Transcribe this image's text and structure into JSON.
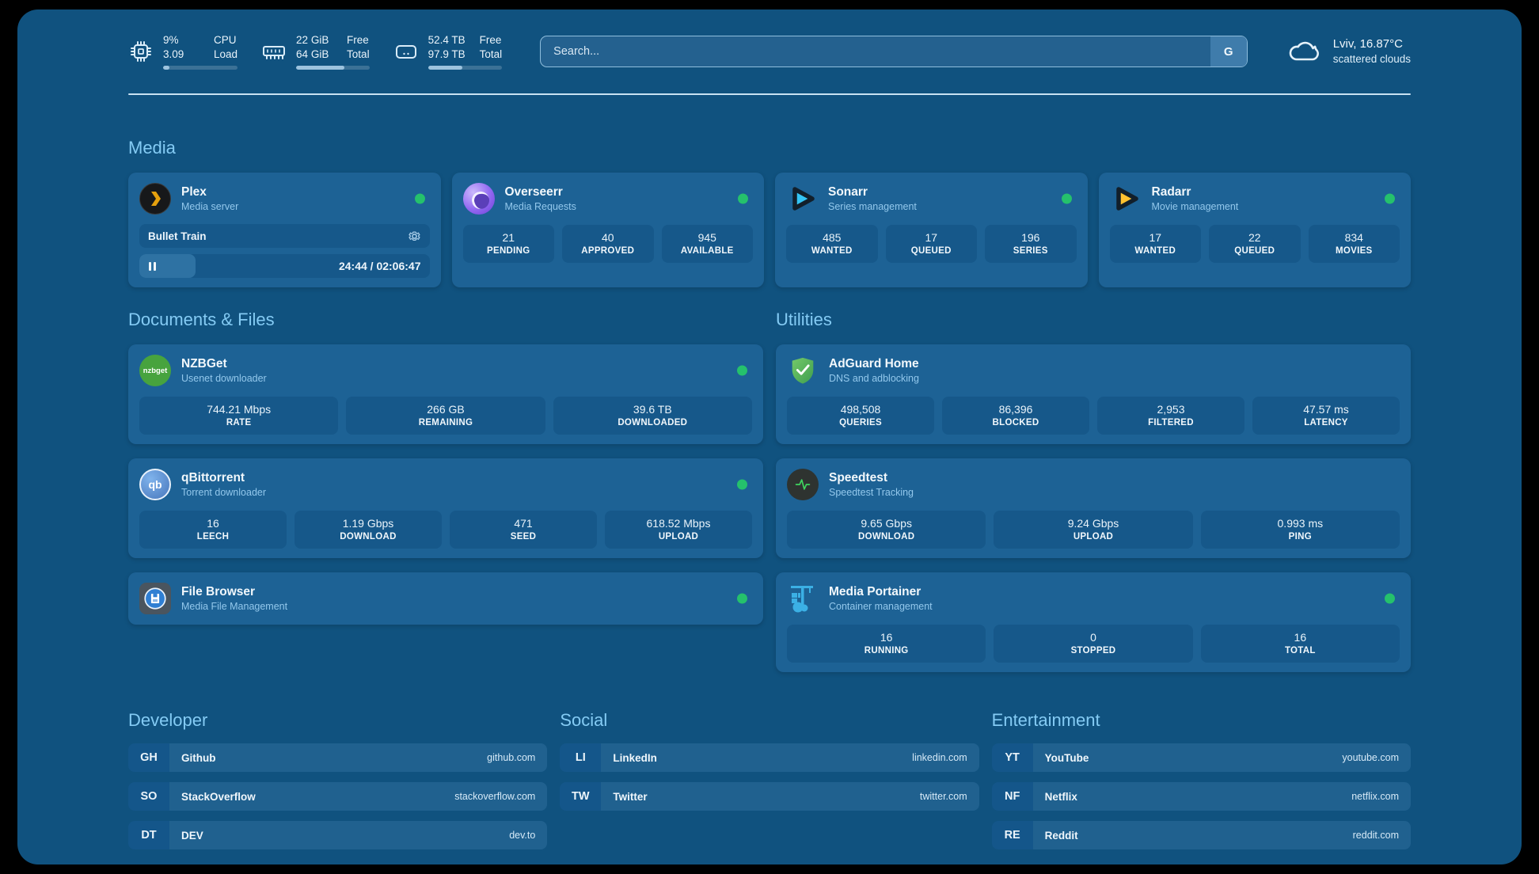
{
  "colors": {
    "status_online": "#25C16C",
    "accent": "#84CBF4",
    "page_background": "#10527F",
    "card_background": "#1D6295"
  },
  "header": {
    "stats": [
      {
        "name": "cpu",
        "values": [
          "9%",
          "3.09"
        ],
        "labels": [
          "CPU",
          "Load"
        ],
        "progress_percent": 9
      },
      {
        "name": "memory",
        "values": [
          "22 GiB",
          "64 GiB"
        ],
        "labels": [
          "Free",
          "Total"
        ],
        "progress_percent": 66
      },
      {
        "name": "storage",
        "values": [
          "52.4 TB",
          "97.9 TB"
        ],
        "labels": [
          "Free",
          "Total"
        ],
        "progress_percent": 46
      }
    ],
    "search": {
      "placeholder": "Search...",
      "engine_button": "G"
    },
    "weather": {
      "location": "Lviv, 16.87°C",
      "condition": "scattered clouds"
    }
  },
  "media": {
    "title": "Media",
    "plex": {
      "name": "Plex",
      "subtitle": "Media server",
      "now_playing": {
        "title": "Bullet Train",
        "time_display": "24:44 / 02:06:47",
        "progress_percent": 19.5
      }
    },
    "overseerr": {
      "name": "Overseerr",
      "subtitle": "Media Requests",
      "stats": [
        {
          "value": "21",
          "label": "PENDING"
        },
        {
          "value": "40",
          "label": "APPROVED"
        },
        {
          "value": "945",
          "label": "AVAILABLE"
        }
      ]
    },
    "sonarr": {
      "name": "Sonarr",
      "subtitle": "Series management",
      "stats": [
        {
          "value": "485",
          "label": "WANTED"
        },
        {
          "value": "17",
          "label": "QUEUED"
        },
        {
          "value": "196",
          "label": "SERIES"
        }
      ]
    },
    "radarr": {
      "name": "Radarr",
      "subtitle": "Movie management",
      "stats": [
        {
          "value": "17",
          "label": "WANTED"
        },
        {
          "value": "22",
          "label": "QUEUED"
        },
        {
          "value": "834",
          "label": "MOVIES"
        }
      ]
    }
  },
  "documents": {
    "title": "Documents & Files",
    "nzbget": {
      "name": "NZBGet",
      "subtitle": "Usenet downloader",
      "icon_text": "nzbget",
      "stats": [
        {
          "value": "744.21 Mbps",
          "label": "RATE"
        },
        {
          "value": "266 GB",
          "label": "REMAINING"
        },
        {
          "value": "39.6 TB",
          "label": "DOWNLOADED"
        }
      ]
    },
    "qbittorrent": {
      "name": "qBittorrent",
      "subtitle": "Torrent downloader",
      "icon_text": "qb",
      "stats": [
        {
          "value": "16",
          "label": "LEECH"
        },
        {
          "value": "1.19 Gbps",
          "label": "DOWNLOAD"
        },
        {
          "value": "471",
          "label": "SEED"
        },
        {
          "value": "618.52 Mbps",
          "label": "UPLOAD"
        }
      ]
    },
    "filebrowser": {
      "name": "File Browser",
      "subtitle": "Media File Management"
    }
  },
  "utilities": {
    "title": "Utilities",
    "adguard": {
      "name": "AdGuard Home",
      "subtitle": "DNS and adblocking",
      "stats": [
        {
          "value": "498,508",
          "label": "QUERIES"
        },
        {
          "value": "86,396",
          "label": "BLOCKED"
        },
        {
          "value": "2,953",
          "label": "FILTERED"
        },
        {
          "value": "47.57 ms",
          "label": "LATENCY"
        }
      ]
    },
    "speedtest": {
      "name": "Speedtest",
      "subtitle": "Speedtest Tracking",
      "stats": [
        {
          "value": "9.65 Gbps",
          "label": "DOWNLOAD"
        },
        {
          "value": "9.24 Gbps",
          "label": "UPLOAD"
        },
        {
          "value": "0.993 ms",
          "label": "PING"
        }
      ]
    },
    "portainer": {
      "name": "Media Portainer",
      "subtitle": "Container management",
      "stats": [
        {
          "value": "16",
          "label": "RUNNING"
        },
        {
          "value": "0",
          "label": "STOPPED"
        },
        {
          "value": "16",
          "label": "TOTAL"
        }
      ]
    }
  },
  "bookmarks": [
    {
      "title": "Developer",
      "links": [
        {
          "abbr": "GH",
          "name": "Github",
          "url": "github.com"
        },
        {
          "abbr": "SO",
          "name": "StackOverflow",
          "url": "stackoverflow.com"
        },
        {
          "abbr": "DT",
          "name": "DEV",
          "url": "dev.to"
        }
      ]
    },
    {
      "title": "Social",
      "links": [
        {
          "abbr": "LI",
          "name": "LinkedIn",
          "url": "linkedin.com"
        },
        {
          "abbr": "TW",
          "name": "Twitter",
          "url": "twitter.com"
        }
      ]
    },
    {
      "title": "Entertainment",
      "links": [
        {
          "abbr": "YT",
          "name": "YouTube",
          "url": "youtube.com"
        },
        {
          "abbr": "NF",
          "name": "Netflix",
          "url": "netflix.com"
        },
        {
          "abbr": "RE",
          "name": "Reddit",
          "url": "reddit.com"
        }
      ]
    }
  ]
}
